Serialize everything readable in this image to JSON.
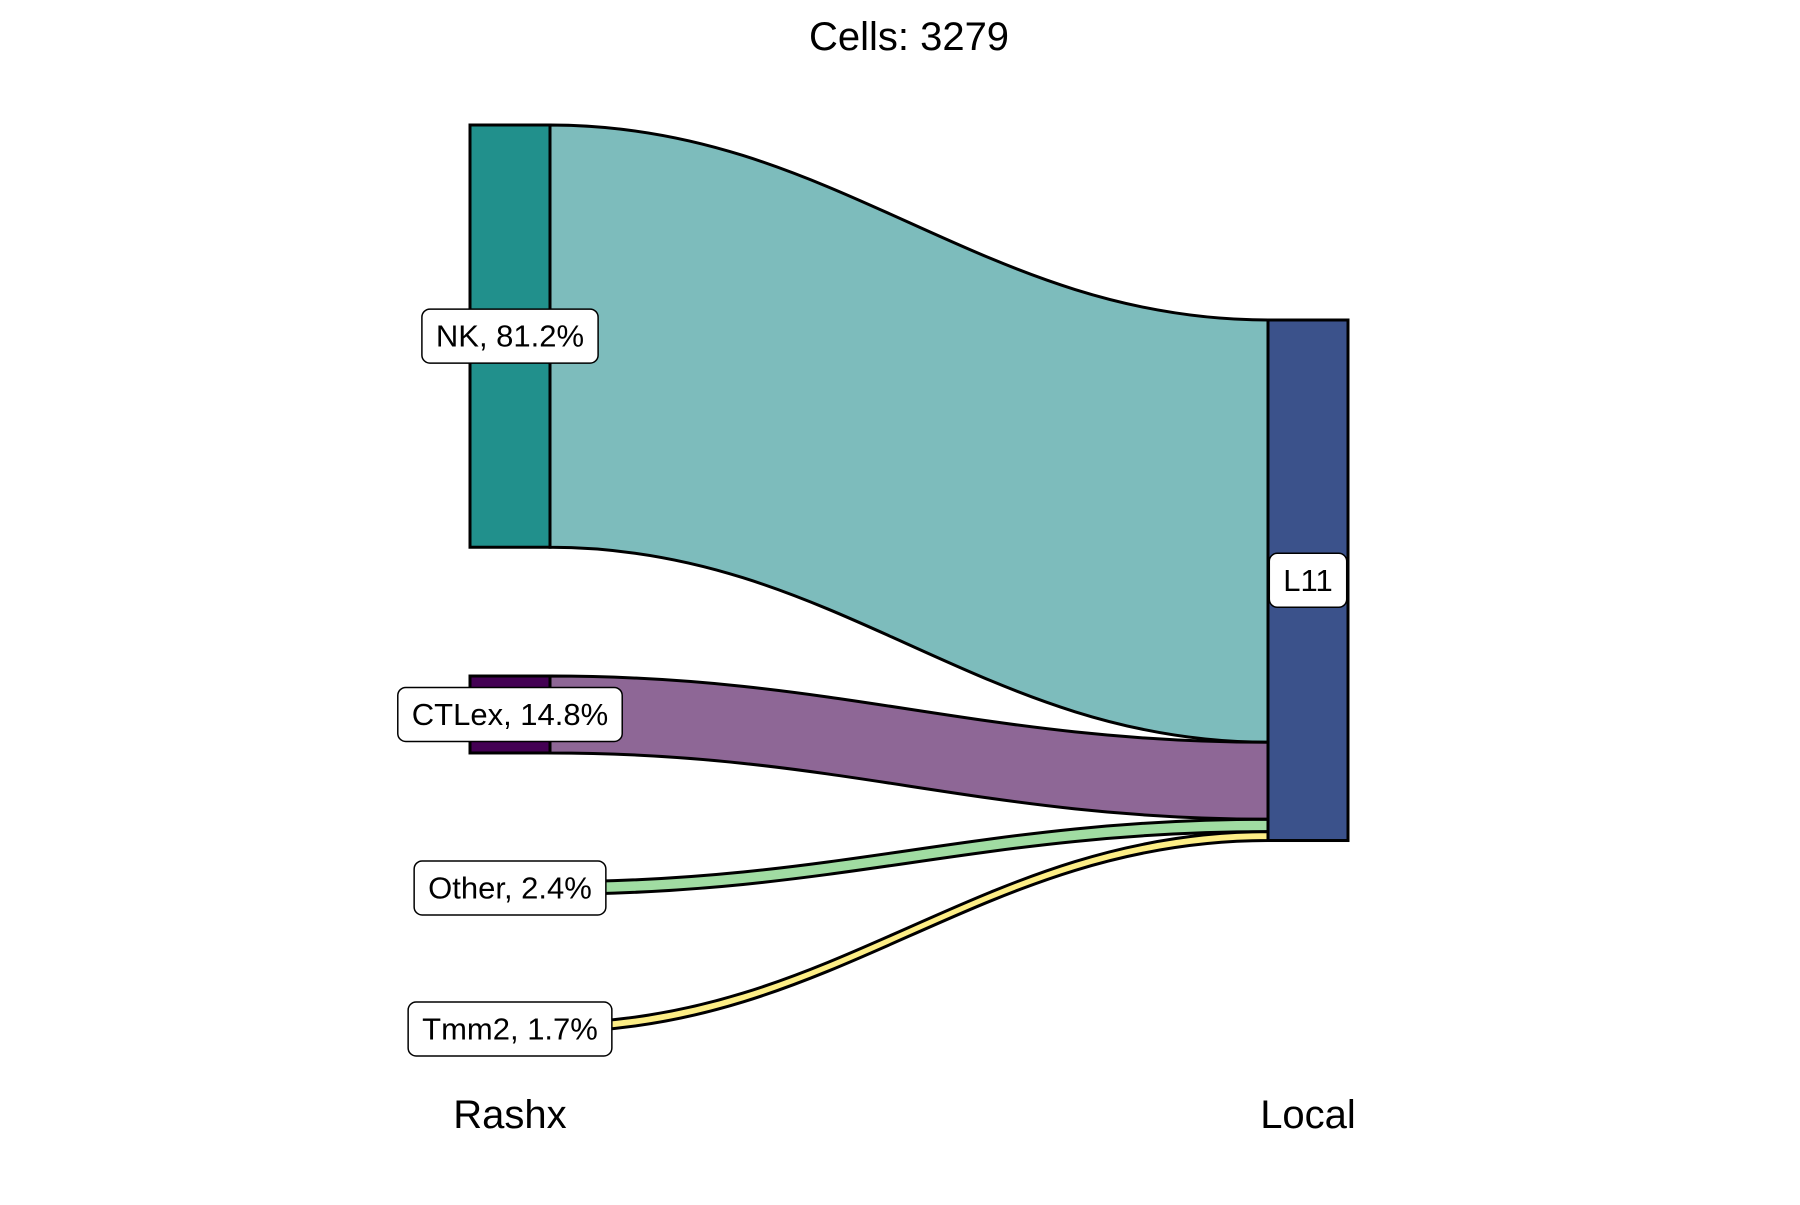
{
  "chart_data": {
    "type": "sankey",
    "title": "Cells:  3279",
    "axes": [
      {
        "name": "Rashx"
      },
      {
        "name": "Local"
      }
    ],
    "left_nodes": [
      {
        "id": "NK",
        "label": "NK, 81.2%",
        "value": 81.2,
        "bar_color": "#21908c",
        "flow_color": "#7dbcbc"
      },
      {
        "id": "CTLex",
        "label": "CTLex, 14.8%",
        "value": 14.8,
        "bar_color": "#440154",
        "flow_color": "#8e6796"
      },
      {
        "id": "Other",
        "label": "Other, 2.4%",
        "value": 2.4,
        "bar_color": "#5ec962",
        "flow_color": "#a0dca2"
      },
      {
        "id": "Tmm2",
        "label": "Tmm2, 1.7%",
        "value": 1.7,
        "bar_color": "#fde725",
        "flow_color": "#fdee86"
      }
    ],
    "right_nodes": [
      {
        "id": "L11",
        "label": "L11",
        "value": 100,
        "bar_color": "#3b528b"
      }
    ],
    "flows": [
      {
        "source": "NK",
        "target": "L11",
        "value": 81.2
      },
      {
        "source": "CTLex",
        "target": "L11",
        "value": 14.8
      },
      {
        "source": "Other",
        "target": "L11",
        "value": 2.4
      },
      {
        "source": "Tmm2",
        "target": "L11",
        "value": 1.7
      }
    ]
  }
}
